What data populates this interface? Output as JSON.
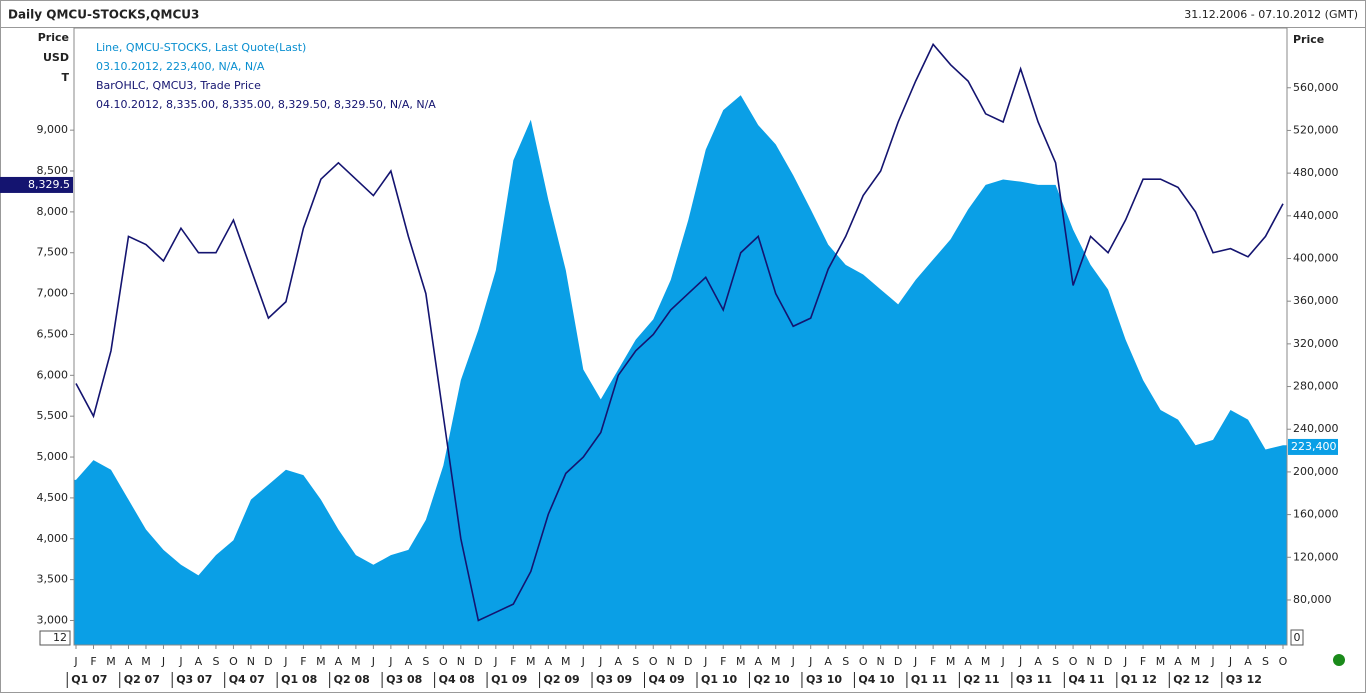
{
  "chart_data": {
    "type": "line",
    "title": "Daily QMCU-STOCKS,QMCU3",
    "date_range": "31.12.2006 - 07.10.2012 (GMT)",
    "ylabel_lines": [
      "Price",
      "USD",
      "T"
    ],
    "y2label": "Price",
    "categories": [
      "J",
      "F",
      "M",
      "A",
      "M",
      "J",
      "J",
      "A",
      "S",
      "O",
      "N",
      "D",
      "J",
      "F",
      "M",
      "A",
      "M",
      "J",
      "J",
      "A",
      "S",
      "O",
      "N",
      "D",
      "J",
      "F",
      "M",
      "A",
      "M",
      "J",
      "J",
      "A",
      "S",
      "O",
      "N",
      "D",
      "J",
      "F",
      "M",
      "A",
      "M",
      "J",
      "J",
      "A",
      "S",
      "O",
      "N",
      "D",
      "J",
      "F",
      "M",
      "A",
      "M",
      "J",
      "J",
      "A",
      "S",
      "O",
      "N",
      "D",
      "J",
      "F",
      "M",
      "A",
      "M",
      "J",
      "J",
      "A",
      "S",
      "O"
    ],
    "quarters": [
      "Q1 07",
      "Q2 07",
      "Q3 07",
      "Q4 07",
      "Q1 08",
      "Q2 08",
      "Q3 08",
      "Q4 08",
      "Q1 09",
      "Q2 09",
      "Q3 09",
      "Q4 09",
      "Q1 10",
      "Q2 10",
      "Q3 10",
      "Q4 10",
      "Q1 11",
      "Q2 11",
      "Q3 11",
      "Q4 11",
      "Q1 12",
      "Q2 12",
      "Q3 12"
    ],
    "series": [
      {
        "name": "Line, QMCU-STOCKS, Last Quote(Last)",
        "legend_detail": "03.10.2012, 223,400, N/A, N/A",
        "color": "#0a9fe6",
        "axis": "y2",
        "fill": true,
        "values": [
          192500,
          211000,
          202000,
          174000,
          146000,
          127000,
          113000,
          103000,
          122000,
          136000,
          174000,
          188000,
          202000,
          197000,
          174000,
          146000,
          122000,
          113000,
          122000,
          127000,
          155000,
          206000,
          286000,
          333000,
          389000,
          492000,
          530000,
          455000,
          389000,
          296000,
          268000,
          296000,
          324000,
          343000,
          380000,
          436000,
          502000,
          539000,
          553000,
          525000,
          507000,
          478000,
          446000,
          413000,
          394000,
          385000,
          371000,
          357000,
          380000,
          399000,
          418000,
          446000,
          469000,
          474000,
          472000,
          469000,
          469000,
          427000,
          394000,
          371000,
          324000,
          286000,
          258000,
          249000,
          225000,
          230000,
          258000,
          249000,
          221000,
          225000
        ]
      },
      {
        "name": "BarOHLC, QMCU3, Trade Price",
        "legend_detail": "04.10.2012, 8,335.00, 8,335.00, 8,329.50, 8,329.50, N/A, N/A",
        "color": "#141470",
        "axis": "y",
        "values": [
          5900,
          5500,
          6300,
          7700,
          7600,
          7400,
          7800,
          7500,
          7500,
          7900,
          7300,
          6700,
          6900,
          7800,
          8400,
          8600,
          8400,
          8200,
          8500,
          7700,
          7000,
          5500,
          4000,
          3000,
          3100,
          3200,
          3600,
          4300,
          4800,
          5000,
          5300,
          6000,
          6300,
          6500,
          6800,
          7000,
          7200,
          6800,
          7500,
          7700,
          7000,
          6600,
          6700,
          7300,
          7700,
          8200,
          8500,
          9100,
          9600,
          10050,
          9800,
          9600,
          9200,
          9100,
          9750,
          9100,
          8600,
          7100,
          7700,
          7500,
          7900,
          8400,
          8400,
          8300,
          8000,
          7500,
          7550,
          7450,
          7700,
          8100
        ]
      }
    ],
    "ylim": [
      2700,
      10250
    ],
    "yticks": [
      {
        "value": 3000,
        "label": "3,000"
      },
      {
        "value": 3500,
        "label": "3,500"
      },
      {
        "value": 4000,
        "label": "4,000"
      },
      {
        "value": 4500,
        "label": "4,500"
      },
      {
        "value": 5000,
        "label": "5,000"
      },
      {
        "value": 5500,
        "label": "5,500"
      },
      {
        "value": 6000,
        "label": "6,000"
      },
      {
        "value": 6500,
        "label": "6,500"
      },
      {
        "value": 7000,
        "label": "7,000"
      },
      {
        "value": 7500,
        "label": "7,500"
      },
      {
        "value": 8000,
        "label": "8,000"
      },
      {
        "value": 8500,
        "label": "8,500"
      },
      {
        "value": 9000,
        "label": "9,000"
      }
    ],
    "y2lim": [
      37800,
      616000
    ],
    "y2ticks": [
      {
        "value": 80000,
        "label": "80,000"
      },
      {
        "value": 120000,
        "label": "120,000"
      },
      {
        "value": 160000,
        "label": "160,000"
      },
      {
        "value": 200000,
        "label": "200,000"
      },
      {
        "value": 240000,
        "label": "240,000"
      },
      {
        "value": 280000,
        "label": "280,000"
      },
      {
        "value": 320000,
        "label": "320,000"
      },
      {
        "value": 360000,
        "label": "360,000"
      },
      {
        "value": 400000,
        "label": "400,000"
      },
      {
        "value": 440000,
        "label": "440,000"
      },
      {
        "value": 480000,
        "label": "480,000"
      },
      {
        "value": 520000,
        "label": "520,000"
      },
      {
        "value": 560000,
        "label": "560,000"
      }
    ],
    "last_value_labels": {
      "y": {
        "value": 8329.5,
        "label": "8,329.5"
      },
      "y2": {
        "value": 223400,
        "label": "223,400"
      }
    },
    "corner_markers": [
      "12",
      "0"
    ],
    "grid": false
  }
}
